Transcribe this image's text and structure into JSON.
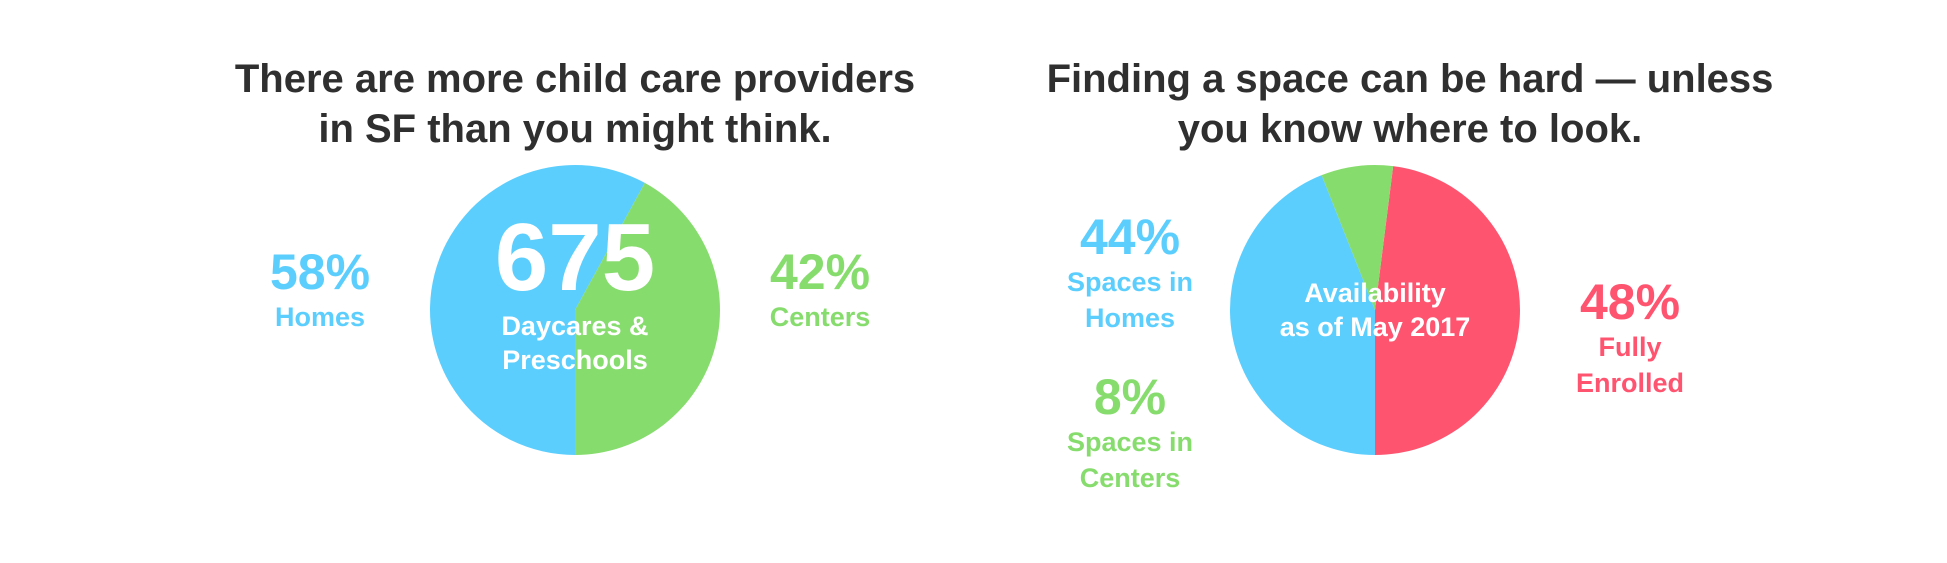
{
  "colors": {
    "blue": "#5ccefd",
    "green": "#87dc6e",
    "red": "#ff5470",
    "title": "#2f2f2f"
  },
  "chart_data": [
    {
      "type": "pie",
      "title": "There are more child care providers in SF than you might think.",
      "title_lines": [
        "There are more child care providers",
        "in SF than you might think."
      ],
      "center_value": "675",
      "center_label_lines": [
        "Daycares &",
        "Preschools"
      ],
      "slices": [
        {
          "name": "Homes",
          "value": 58,
          "value_label": "58%",
          "color": "#5ccefd"
        },
        {
          "name": "Centers",
          "value": 42,
          "value_label": "42%",
          "color": "#87dc6e"
        }
      ]
    },
    {
      "type": "pie",
      "title": "Finding a space can be hard — unless you know where to look.",
      "title_lines": [
        "Finding a space can be hard — unless",
        "you know where to look."
      ],
      "center_label_lines": [
        "Availability",
        "as of May 2017"
      ],
      "slices": [
        {
          "name": "Fully Enrolled",
          "name_lines": [
            "Fully",
            "Enrolled"
          ],
          "value": 48,
          "value_label": "48%",
          "color": "#ff5470"
        },
        {
          "name": "Spaces in Homes",
          "name_lines": [
            "Spaces in",
            "Homes"
          ],
          "value": 44,
          "value_label": "44%",
          "color": "#5ccefd"
        },
        {
          "name": "Spaces in Centers",
          "name_lines": [
            "Spaces in",
            "Centers"
          ],
          "value": 8,
          "value_label": "8%",
          "color": "#87dc6e"
        }
      ]
    }
  ]
}
